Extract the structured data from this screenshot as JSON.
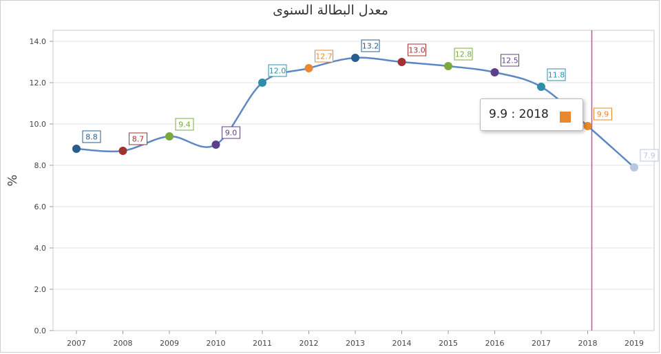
{
  "chart_data": {
    "type": "line",
    "title": "معدل البطالة السنوى",
    "ylabel": "%",
    "xlabel": "",
    "x": [
      "2007",
      "2008",
      "2009",
      "2010",
      "2011",
      "2012",
      "2013",
      "2014",
      "2015",
      "2016",
      "2017",
      "2018",
      "2019"
    ],
    "values": [
      8.8,
      8.7,
      9.4,
      9.0,
      12.0,
      12.7,
      13.2,
      13.0,
      12.8,
      12.5,
      11.8,
      9.9,
      7.9
    ],
    "value_labels": [
      "8.8",
      "8.7",
      "9.4",
      "9.0",
      "12.0",
      "12.7",
      "13.2",
      "13.0",
      "12.8",
      "12.5",
      "11.8",
      "9.9",
      "7.9"
    ],
    "point_colors": [
      "#2a5d8f",
      "#a13232",
      "#7aa93c",
      "#5e3f8a",
      "#2e8eaa",
      "#e9892e",
      "#2a5d8f",
      "#a13232",
      "#7aa93c",
      "#5e3f8a",
      "#2e8eaa",
      "#e9892e",
      "#b8c6e0"
    ],
    "line_color": "#5b87c2",
    "marker_line_color": "#d04b9a",
    "ylim": [
      0,
      14
    ],
    "yticks": [
      "0.0",
      "2.0",
      "4.0",
      "6.0",
      "8.0",
      "10.0",
      "12.0",
      "14.0"
    ],
    "grid": true,
    "highlight_index": 11
  },
  "tooltip": {
    "text": "9.9 : 2018",
    "swatch_color": "#e9892e"
  }
}
